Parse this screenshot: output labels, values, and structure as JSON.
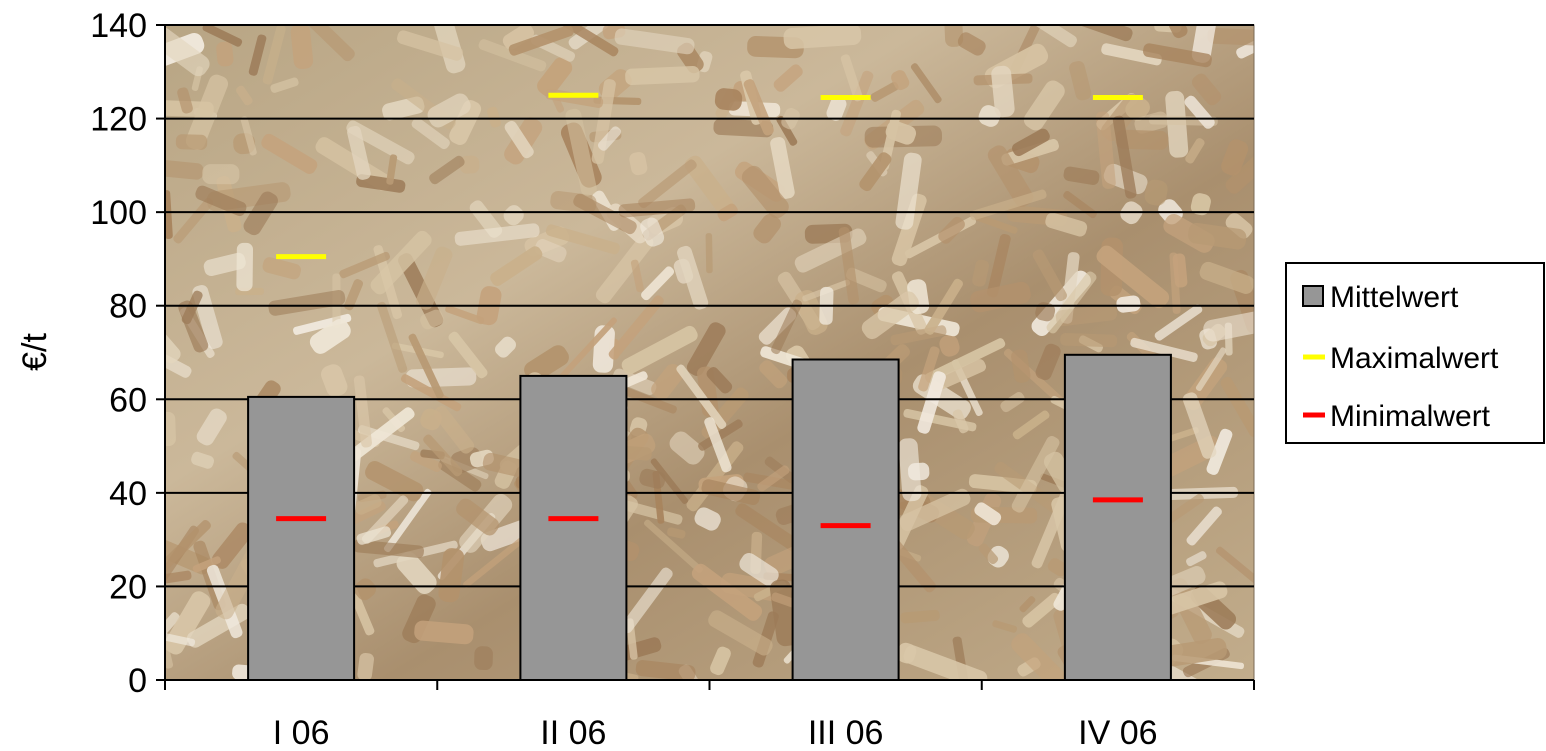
{
  "chart_data": {
    "type": "bar",
    "title": "",
    "xlabel": "",
    "ylabel": "€/t",
    "ylim": [
      0,
      140
    ],
    "yticks": [
      0,
      20,
      40,
      60,
      80,
      100,
      120,
      140
    ],
    "grid": true,
    "legend_position": "right",
    "background": "wood-chips-photo",
    "categories": [
      "I 06",
      "II 06",
      "III 06",
      "IV 06"
    ],
    "series": [
      {
        "name": "Mittelwert",
        "kind": "bar",
        "color": "#969696",
        "values": [
          60.5,
          65,
          68.5,
          69.5
        ]
      },
      {
        "name": "Maximalwert",
        "kind": "marker",
        "color": "#ffff00",
        "values": [
          90.5,
          125,
          124.5,
          124.5
        ]
      },
      {
        "name": "Minimalwert",
        "kind": "marker",
        "color": "#ff0000",
        "values": [
          34.5,
          34.5,
          33,
          38.5
        ]
      }
    ]
  }
}
